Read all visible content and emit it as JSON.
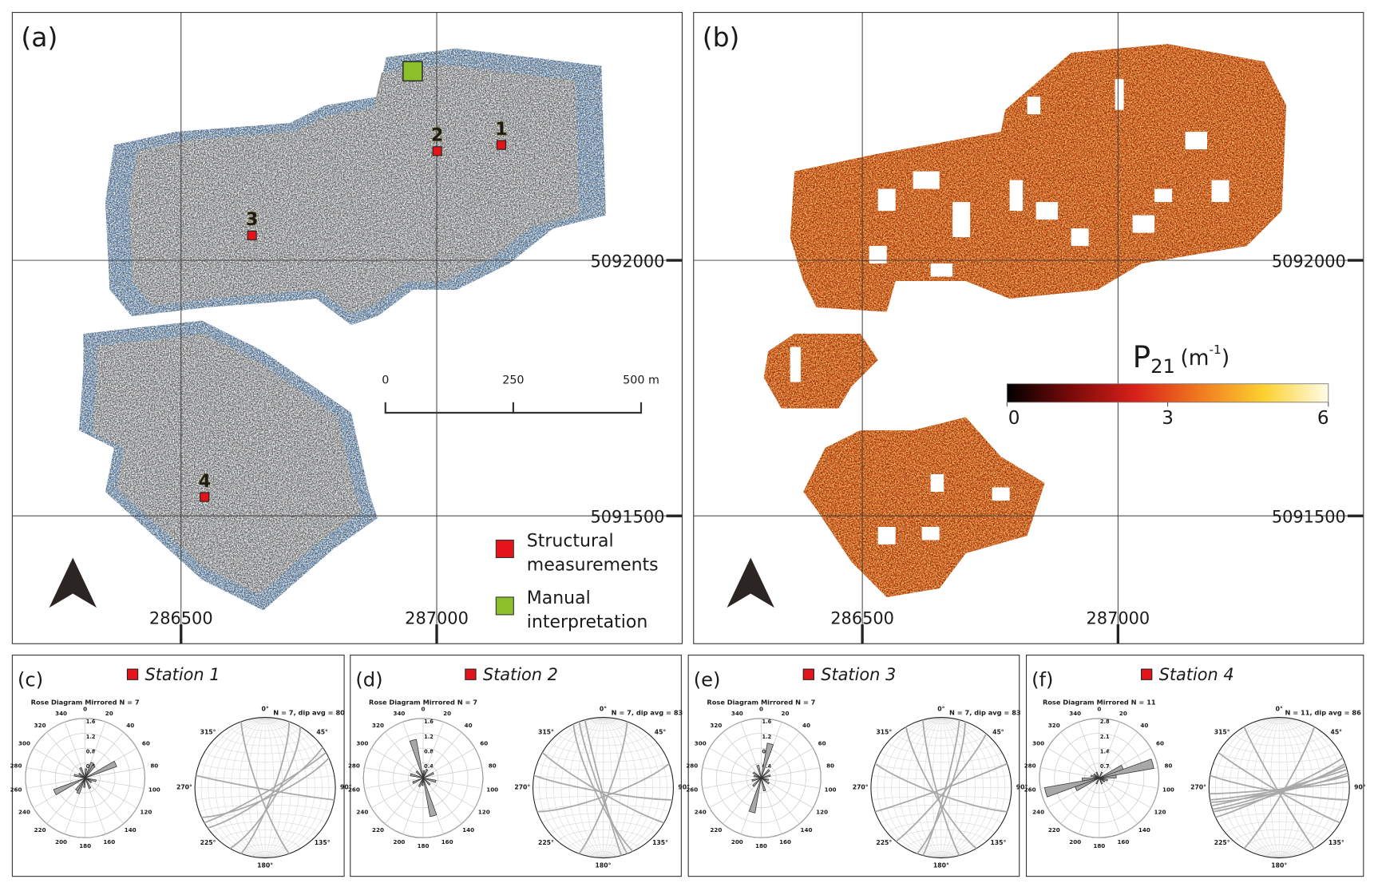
{
  "panel_a": {
    "label": "(a)",
    "station_numbers": [
      "1",
      "2",
      "3",
      "4"
    ],
    "station_color": "#e3151b",
    "station_number_color": "#ffe600",
    "interpretation_color": "#8cc02a",
    "legend": [
      {
        "lines": [
          "Structural",
          "measurements"
        ],
        "color": "#e3151b"
      },
      {
        "lines": [
          "Manual",
          "interpretation"
        ],
        "color": "#8cc02a"
      }
    ],
    "scale_bar": {
      "lim": [
        0,
        500
      ],
      "ticks": [
        {
          "value": 0,
          "label": "0"
        },
        {
          "value": 250,
          "label": "250"
        },
        {
          "value": 500,
          "label": "500 m"
        }
      ]
    }
  },
  "panel_b": {
    "label": "(b)",
    "colorbar": {
      "title": {
        "symbol": "P",
        "subscript": "21",
        "unit_open": "(m",
        "unit_sup": "-1",
        "unit_close": ")"
      },
      "lim": [
        0,
        6
      ],
      "ticks": [
        0,
        3,
        6
      ],
      "colormap": [
        "#000000",
        "#7a0a0a",
        "#d8201a",
        "#f07a20",
        "#fcd030",
        "#fffde8"
      ]
    }
  },
  "map": {
    "xlim": [
      286170,
      287480
    ],
    "ylim": [
      5091250,
      5092485
    ],
    "xticks": [
      286500,
      287000
    ],
    "yticks": [
      5091500,
      5092000
    ],
    "grid": true
  },
  "rose_direction_labels": [
    0,
    20,
    40,
    60,
    80,
    100,
    120,
    140,
    160,
    180,
    200,
    220,
    240,
    260,
    280,
    300,
    320,
    340
  ],
  "stereonet_labels": [
    "0°",
    "45°",
    "90°",
    "135°",
    "180°",
    "225°",
    "270°",
    "315°"
  ],
  "stations": [
    {
      "label": "(c)",
      "title": "Station 1",
      "rose_title": "Rose Diagram Mirrored N = 7",
      "stereonet_caption": "N = 7, dip avg = 80",
      "rose": {
        "rlim": [
          0,
          1.6
        ],
        "rticks": [
          0.4,
          0.8,
          1.2,
          1.6
        ],
        "bins": [
          5,
          25,
          35,
          65,
          105,
          125,
          155
        ],
        "values": [
          0.25,
          0.45,
          0.4,
          0.9,
          0.3,
          0.2,
          0.3
        ]
      },
      "planes": {
        "strike": [
          55,
          60,
          65,
          30,
          100,
          160,
          20
        ],
        "dip": [
          80,
          85,
          78,
          75,
          88,
          82,
          80
        ]
      }
    },
    {
      "label": "(d)",
      "title": "Station 2",
      "rose_title": "Rose Diagram Mirrored N = 7",
      "stereonet_caption": "N = 7, dip avg = 83",
      "rose": {
        "rlim": [
          0,
          1.6
        ],
        "rticks": [
          0.4,
          0.8,
          1.2,
          1.6
        ],
        "bins": [
          5,
          25,
          65,
          105,
          135,
          165
        ],
        "values": [
          0.2,
          0.25,
          0.3,
          0.35,
          0.25,
          1.05
        ]
      },
      "planes": {
        "strike": [
          160,
          155,
          165,
          100,
          70,
          20,
          120
        ],
        "dip": [
          85,
          80,
          88,
          85,
          80,
          82,
          84
        ]
      }
    },
    {
      "label": "(e)",
      "title": "Station 3",
      "rose_title": "Rose Diagram Mirrored N = 7",
      "stereonet_caption": "N = 7, dip avg = 83",
      "rose": {
        "rlim": [
          0,
          1.6
        ],
        "rticks": [
          0.4,
          0.8,
          1.2,
          1.6
        ],
        "bins": [
          15,
          45,
          75,
          105,
          125,
          165
        ],
        "values": [
          0.95,
          0.3,
          0.25,
          0.2,
          0.25,
          0.35
        ]
      },
      "planes": {
        "strike": [
          15,
          20,
          165,
          70,
          110,
          150,
          40
        ],
        "dip": [
          85,
          80,
          84,
          88,
          82,
          80,
          84
        ]
      }
    },
    {
      "label": "(f)",
      "title": "Station 4",
      "rose_title": "Rose Diagram Mirrored N = 11",
      "stereonet_caption": "N = 11, dip avg = 86",
      "rose": {
        "rlim": [
          0,
          2.8
        ],
        "rticks": [
          0.7,
          1.4,
          2.1,
          2.8
        ],
        "bins": [
          25,
          65,
          75,
          85,
          105,
          125,
          155
        ],
        "values": [
          0.3,
          1.2,
          2.6,
          0.8,
          0.4,
          0.3,
          0.3
        ]
      },
      "planes": {
        "strike": [
          75,
          78,
          72,
          80,
          70,
          65,
          85,
          100,
          120,
          30,
          150
        ],
        "dip": [
          88,
          85,
          86,
          87,
          84,
          86,
          88,
          85,
          86,
          84,
          87
        ]
      }
    }
  ]
}
